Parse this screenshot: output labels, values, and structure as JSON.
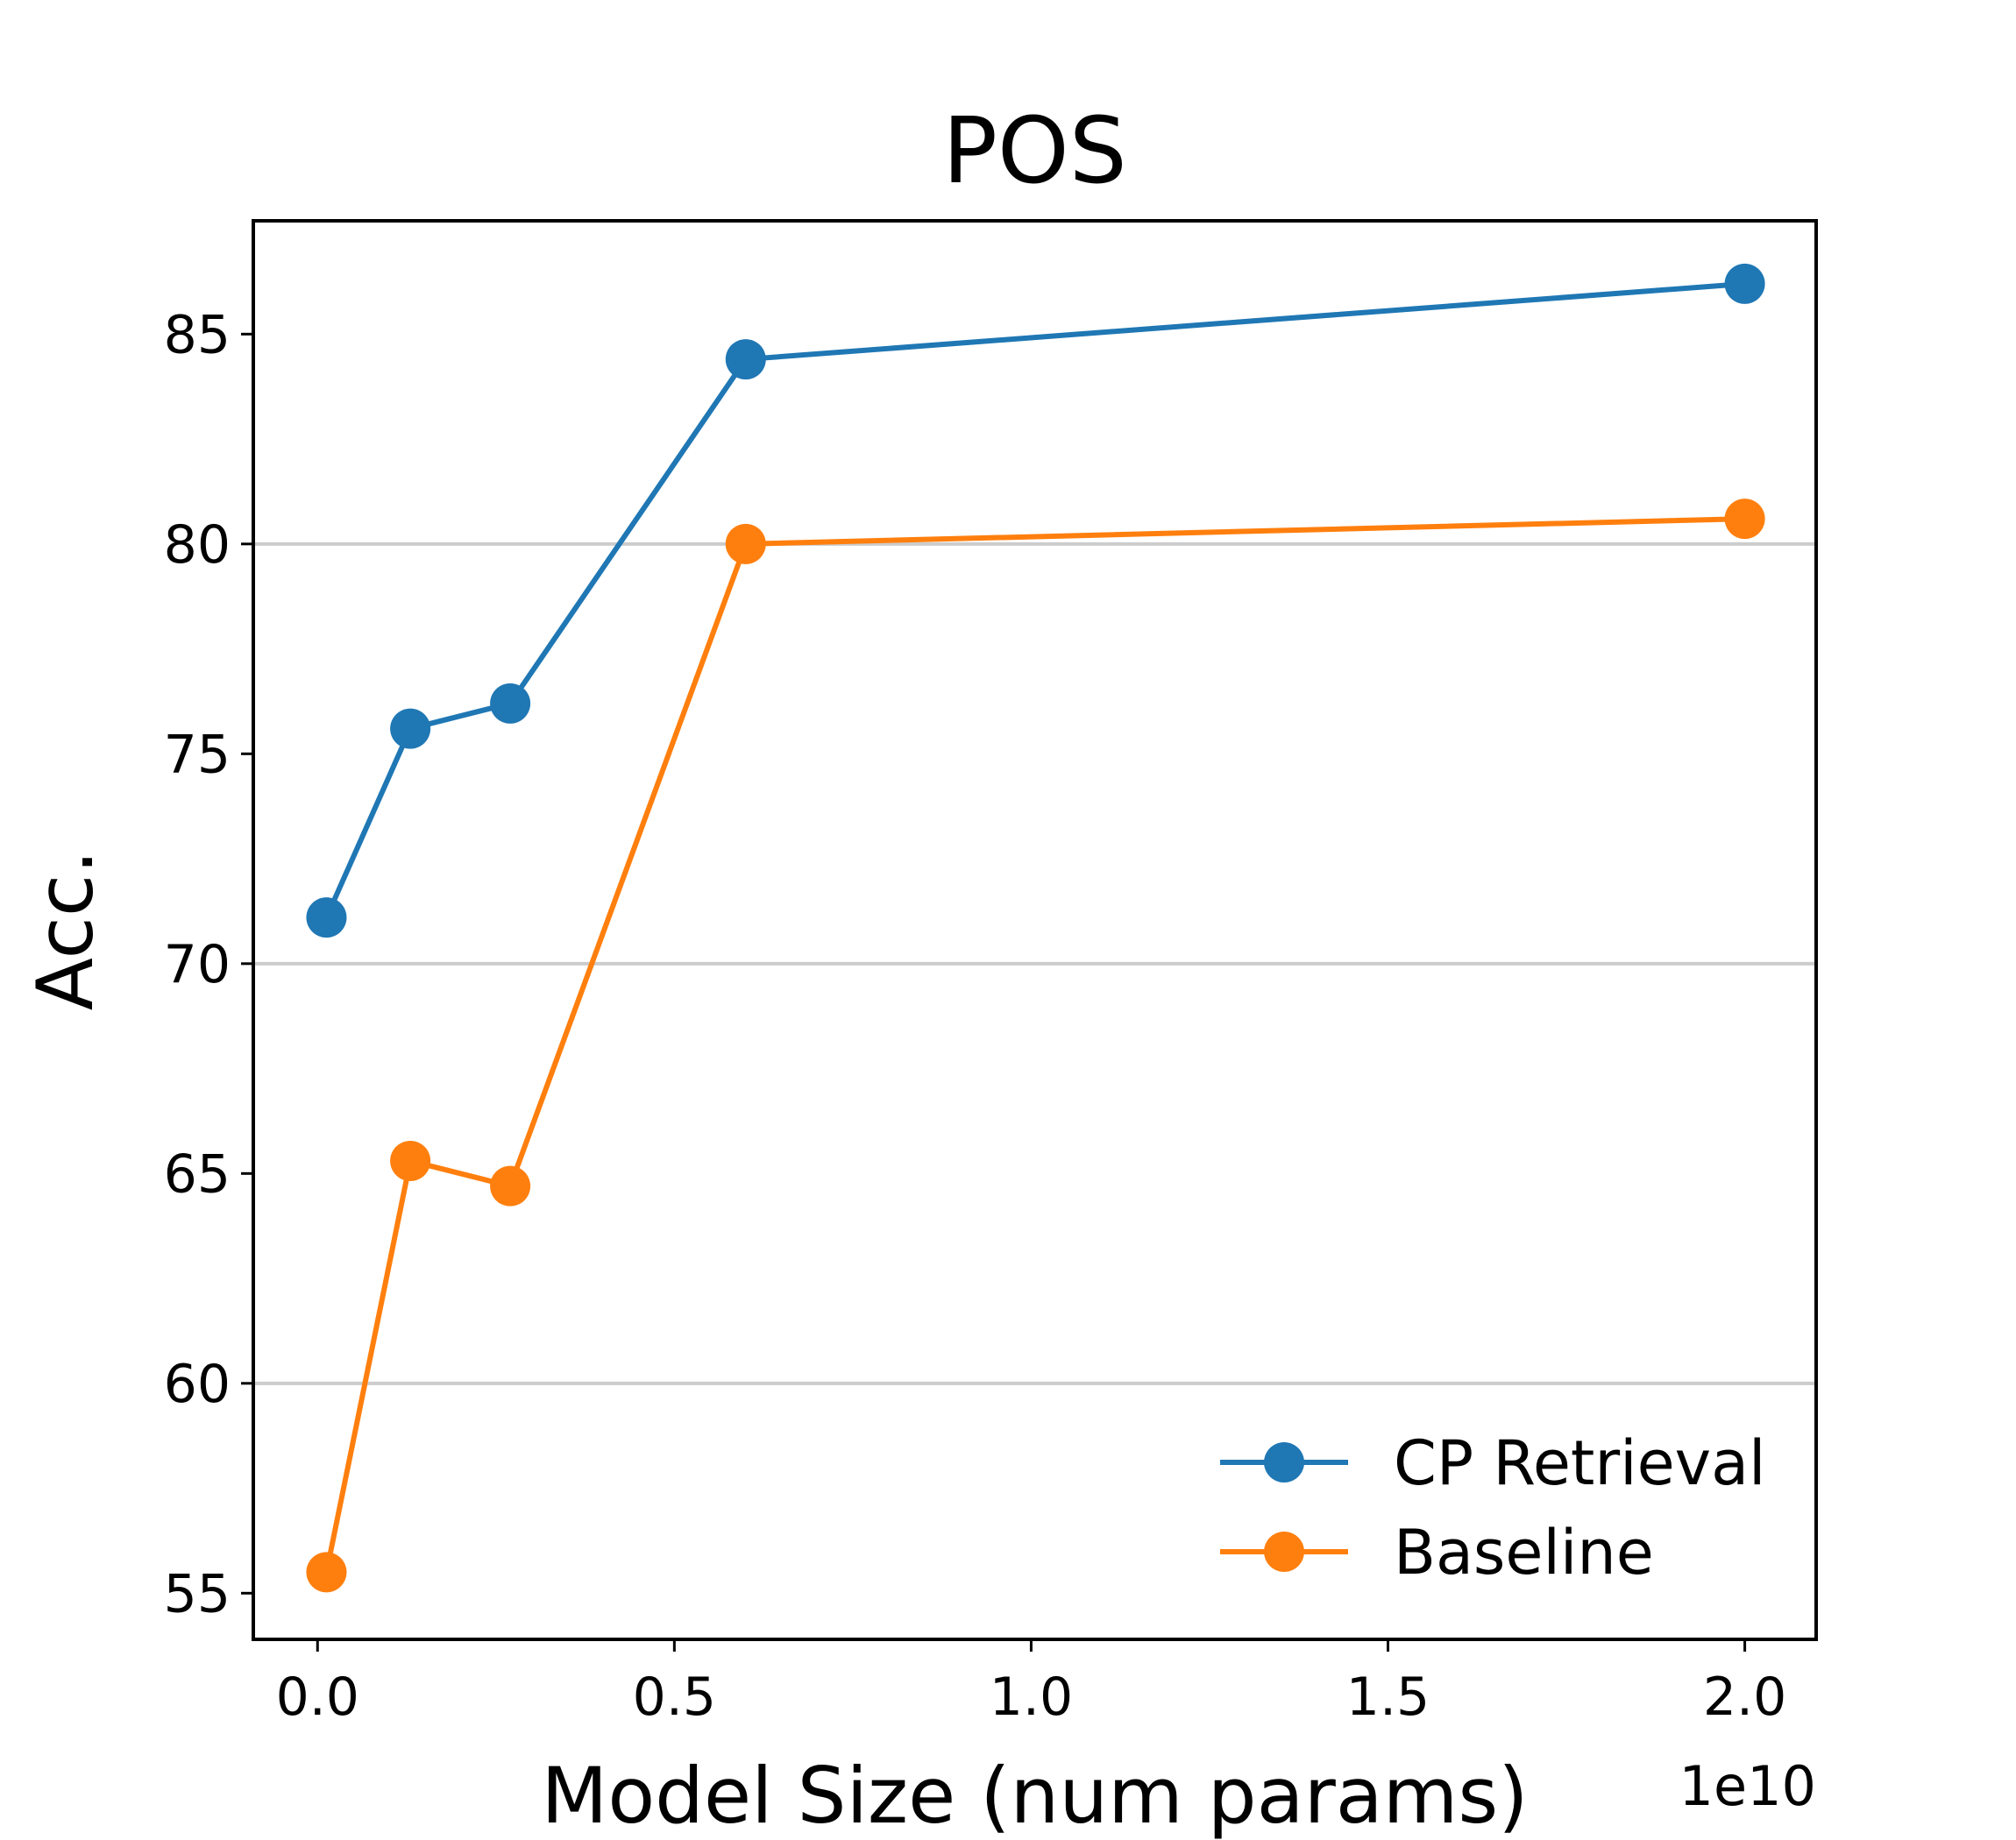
{
  "chart_data": {
    "type": "line",
    "title": "POS",
    "xlabel": "Model Size (num params)",
    "ylabel": "Acc.",
    "x_offset_label": "1e10",
    "xlim": [
      -0.09,
      2.1
    ],
    "ylim": [
      53.9,
      87.7
    ],
    "x_ticks": [
      0.0,
      0.5,
      1.0,
      1.5,
      2.0
    ],
    "x_tick_labels": [
      "0.0",
      "0.5",
      "1.0",
      "1.5",
      "2.0"
    ],
    "y_ticks": [
      55,
      60,
      65,
      70,
      75,
      80,
      85
    ],
    "y_tick_labels": [
      "55",
      "60",
      "65",
      "70",
      "75",
      "80",
      "85"
    ],
    "y_grid_lines": [
      60,
      70,
      80
    ],
    "legend_position": "lower-right",
    "series": [
      {
        "name": "CP Retrieval",
        "color": "#1f77b4",
        "x": [
          0.0125,
          0.13,
          0.27,
          0.6,
          2.0
        ],
        "y": [
          71.1,
          75.6,
          76.2,
          84.4,
          86.2
        ]
      },
      {
        "name": "Baseline",
        "color": "#ff7f0e",
        "x": [
          0.0125,
          0.13,
          0.27,
          0.6,
          2.0
        ],
        "y": [
          55.5,
          65.3,
          64.7,
          80.0,
          80.6
        ]
      }
    ]
  }
}
